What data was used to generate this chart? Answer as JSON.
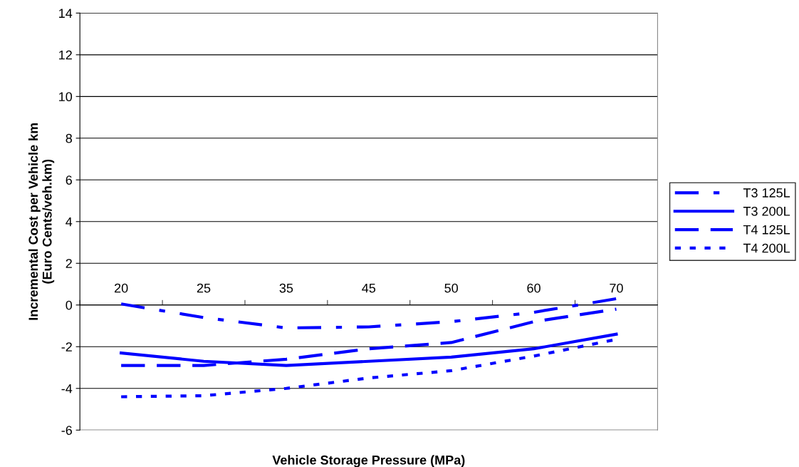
{
  "chart_data": {
    "type": "line",
    "xlabel": "Vehicle Storage Pressure (MPa)",
    "ylabel": "Incremental Cost per Vehicle km\n(Euro Cents/veh.km)",
    "categories": [
      "20",
      "25",
      "35",
      "45",
      "50",
      "60",
      "70"
    ],
    "series": [
      {
        "name": "T3 125L",
        "color": "#0000ff",
        "line_style": "dashdot",
        "values": [
          0.05,
          -0.6,
          -1.1,
          -1.05,
          -0.8,
          -0.35,
          0.3
        ]
      },
      {
        "name": "T3 200L",
        "color": "#0000ff",
        "line_style": "solid",
        "values": [
          -2.3,
          -2.7,
          -2.9,
          -2.7,
          -2.5,
          -2.1,
          -1.4
        ]
      },
      {
        "name": "T4 125L",
        "color": "#0000ff",
        "line_style": "dashed",
        "values": [
          -2.9,
          -2.9,
          -2.6,
          -2.1,
          -1.8,
          -0.8,
          -0.2
        ]
      },
      {
        "name": "T4 200L",
        "color": "#0000ff",
        "line_style": "dotted",
        "values": [
          -4.4,
          -4.35,
          -4.0,
          -3.5,
          -3.15,
          -2.45,
          -1.65
        ]
      }
    ],
    "ylim": [
      -6,
      14
    ],
    "yticks": [
      -6,
      -4,
      -2,
      0,
      2,
      4,
      6,
      8,
      10,
      12,
      14
    ],
    "grid": "y",
    "legend": "right",
    "marker": "none"
  }
}
